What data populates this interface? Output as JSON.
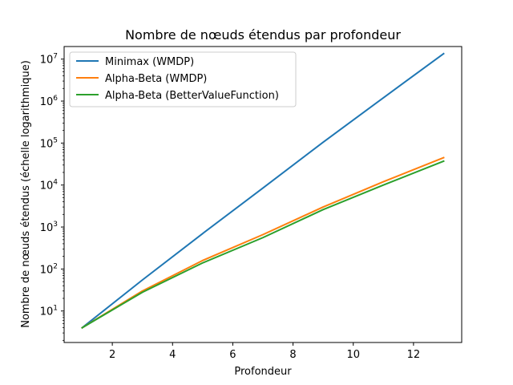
{
  "chart_data": {
    "type": "line",
    "title": "Nombre de nœuds étendus par profondeur",
    "xlabel": "Profondeur",
    "ylabel": "Nombre de nœuds étendus (échelle logarithmique)",
    "yscale": "log",
    "grid": false,
    "legend_position": "top-left",
    "xlim": [
      0.4,
      13.6
    ],
    "ylim_log10": [
      0.25,
      7.3
    ],
    "x_ticks": [
      2,
      4,
      6,
      8,
      10,
      12
    ],
    "y_ticks": [
      {
        "exp": 1,
        "label": "10",
        "sup": "1"
      },
      {
        "exp": 2,
        "label": "10",
        "sup": "2"
      },
      {
        "exp": 3,
        "label": "10",
        "sup": "3"
      },
      {
        "exp": 4,
        "label": "10",
        "sup": "4"
      },
      {
        "exp": 5,
        "label": "10",
        "sup": "5"
      },
      {
        "exp": 6,
        "label": "10",
        "sup": "6"
      },
      {
        "exp": 7,
        "label": "10",
        "sup": "7"
      }
    ],
    "series": [
      {
        "name": "Minimax (WMDP)",
        "color": "#1f77b4",
        "x": [
          1,
          3,
          5,
          7,
          9,
          11,
          13
        ],
        "y": [
          4,
          55,
          700,
          8500,
          105000,
          1200000,
          13500000
        ]
      },
      {
        "name": "Alpha-Beta (WMDP)",
        "color": "#ff7f0e",
        "x": [
          1,
          3,
          5,
          7,
          9,
          11,
          13
        ],
        "y": [
          4,
          30,
          160,
          660,
          3000,
          12000,
          45000
        ]
      },
      {
        "name": "Alpha-Beta (BetterValueFunction)",
        "color": "#2ca02c",
        "x": [
          1,
          3,
          5,
          7,
          9,
          11,
          13
        ],
        "y": [
          4,
          28,
          140,
          560,
          2600,
          10000,
          37000
        ]
      }
    ]
  }
}
